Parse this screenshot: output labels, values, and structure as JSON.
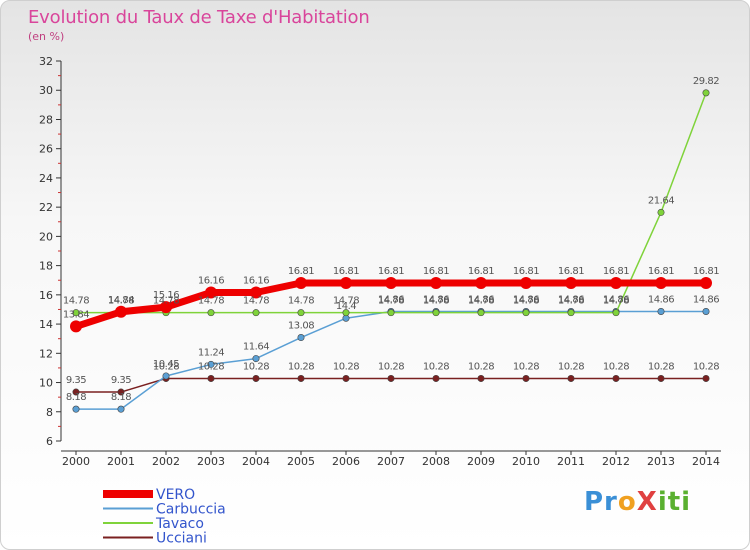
{
  "title": "Evolution du Taux de Taxe d'Habitation",
  "subtitle": "(en %)",
  "logo": {
    "p1": "Pr",
    "p2": "o",
    "p3": "X",
    "p4": "iti"
  },
  "chart_data": {
    "type": "line",
    "x": [
      "2000",
      "2001",
      "2002",
      "2003",
      "2004",
      "2005",
      "2006",
      "2007",
      "2008",
      "2009",
      "2010",
      "2011",
      "2012",
      "2013",
      "2014"
    ],
    "ylim": [
      6,
      32
    ],
    "yticks": [
      6,
      8,
      10,
      12,
      14,
      16,
      18,
      20,
      22,
      24,
      26,
      28,
      30,
      32
    ],
    "grid": false,
    "legend_position": "bottom-left",
    "series": [
      {
        "name": "VERO",
        "color": "#ee0000",
        "values": [
          13.84,
          14.84,
          15.16,
          16.16,
          16.16,
          16.81,
          16.81,
          16.81,
          16.81,
          16.81,
          16.81,
          16.81,
          16.81,
          16.81,
          16.81
        ],
        "labels": [
          "13.84",
          "14.84",
          "15.16",
          "16.16",
          "16.16",
          "16.81",
          "16.81",
          "16.81",
          "16.81",
          "16.81",
          "16.81",
          "16.81",
          "16.81",
          "16.81",
          "16.81"
        ]
      },
      {
        "name": "Carbuccia",
        "color": "#5a9fd4",
        "values": [
          8.18,
          8.18,
          10.45,
          11.24,
          11.64,
          13.08,
          14.4,
          14.86,
          14.86,
          14.86,
          14.86,
          14.86,
          14.86,
          14.86,
          14.86
        ],
        "labels": [
          "8.18",
          "8.18",
          "10.45",
          "11.24",
          "11.64",
          "13.08",
          "14.4",
          "14.86",
          "14.86",
          "14.86",
          "14.86",
          "14.86",
          "14.86",
          "14.86",
          "14.86"
        ]
      },
      {
        "name": "Tavaco",
        "color": "#7fd33a",
        "values": [
          14.78,
          14.78,
          14.78,
          14.78,
          14.78,
          14.78,
          14.78,
          14.78,
          14.78,
          14.78,
          14.78,
          14.78,
          14.78,
          21.64,
          29.82
        ],
        "labels": [
          "14.78",
          "14.78",
          "14.78",
          "14.78",
          "14.78",
          "14.78",
          "14.78",
          "14.78",
          "14.78",
          "14.78",
          "14.78",
          "14.78",
          "14.78",
          "21.64",
          "29.82"
        ]
      },
      {
        "name": "Ucciani",
        "color": "#7a2020",
        "values": [
          9.35,
          9.35,
          10.28,
          10.28,
          10.28,
          10.28,
          10.28,
          10.28,
          10.28,
          10.28,
          10.28,
          10.28,
          10.28,
          10.28,
          10.28
        ],
        "labels": [
          "9.35",
          "9.35",
          "10.28",
          "10.28",
          "10.28",
          "10.28",
          "10.28",
          "10.28",
          "10.28",
          "10.28",
          "10.28",
          "10.28",
          "10.28",
          "10.28",
          "10.28"
        ]
      }
    ]
  }
}
